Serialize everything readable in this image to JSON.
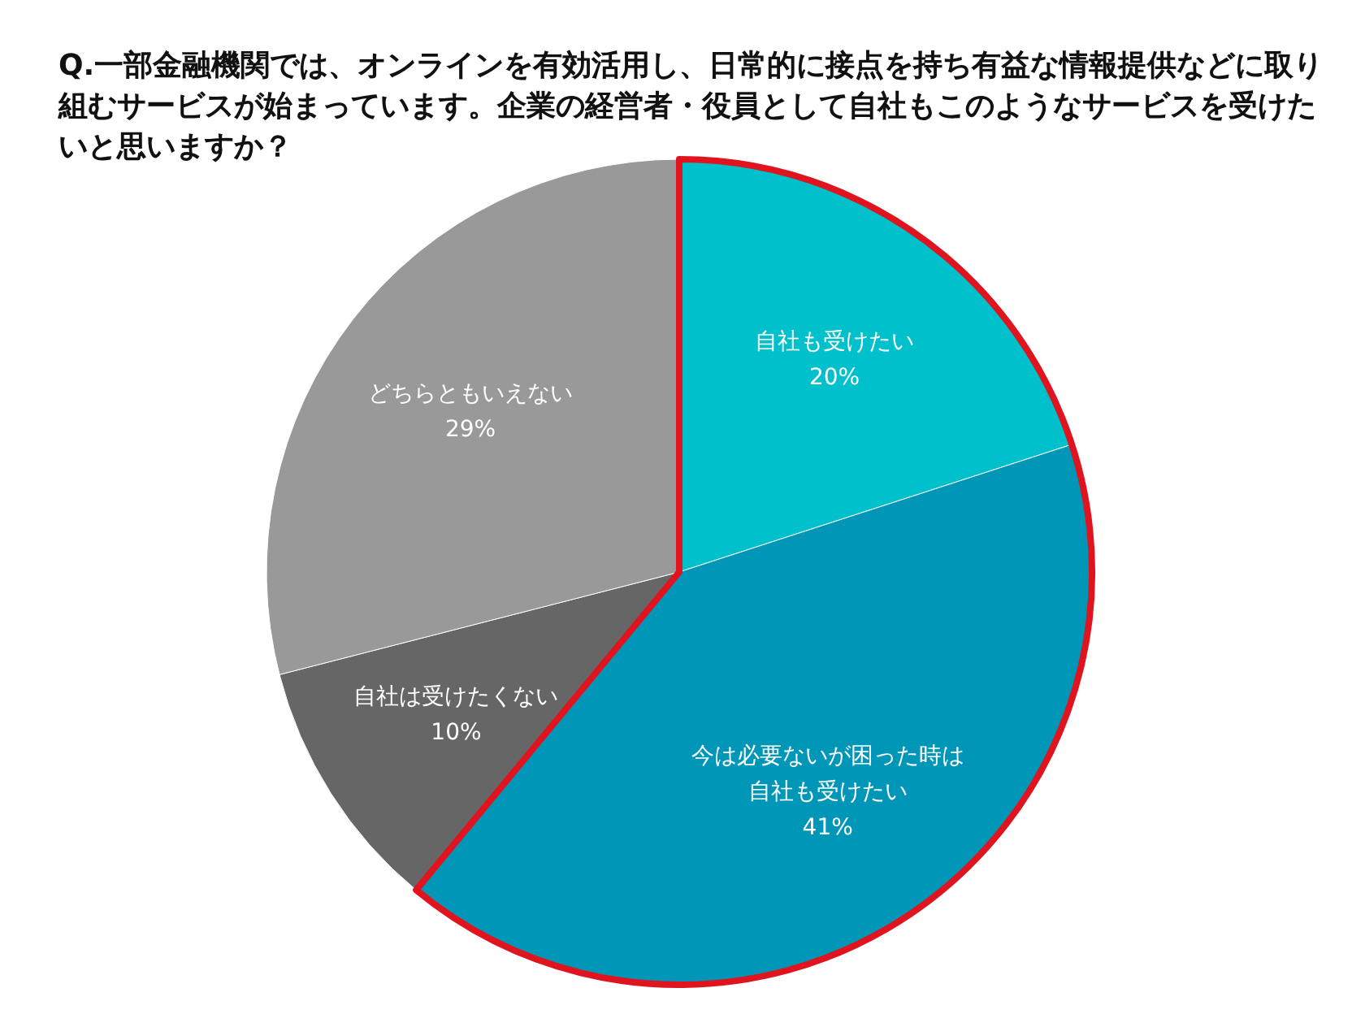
{
  "chart_data": {
    "type": "pie",
    "title": "Q.一部金融機関では、オンラインを有効活用し、日常的に接点を持ち有益な情報提供などに取り組むサービスが始まっています。企業の経営者・役員として自社もこのようなサービスを受けたいと思いますか？",
    "categories": [
      "自社も受けたい",
      "今は必要ないが困った時は自社も受けたい",
      "自社は受けたくない",
      "どちらともいえない"
    ],
    "values": [
      20,
      41,
      10,
      29
    ],
    "colors": [
      "#00c0cc",
      "#0096b8",
      "#666666",
      "#999999"
    ],
    "value_labels": [
      "20%",
      "41%",
      "10%",
      "29%"
    ]
  }
}
